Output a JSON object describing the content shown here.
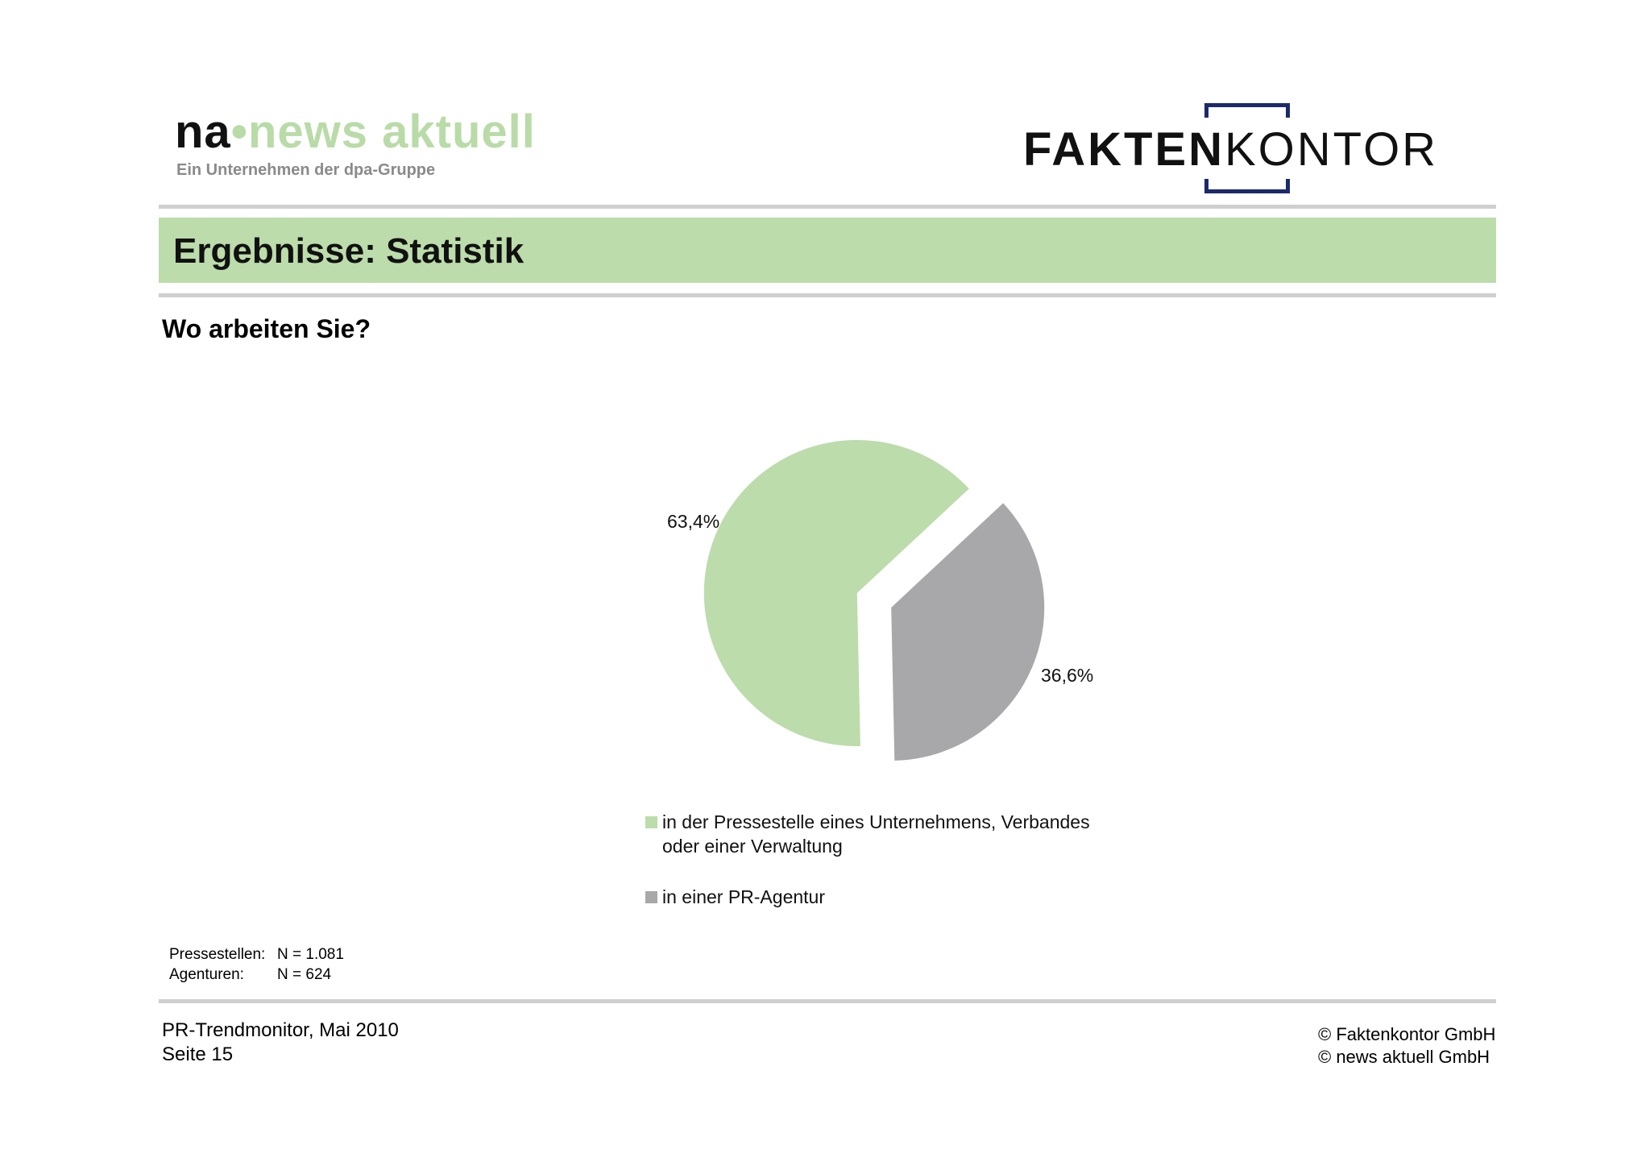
{
  "logos": {
    "news_aktuell": {
      "brand_na": "na",
      "brand_dot": "•",
      "brand_name": "news aktuell",
      "subtitle": "Ein Unternehmen der dpa-Gruppe"
    },
    "faktenkontor": {
      "part_bold": "FAKTEN",
      "part_light": "KONTOR"
    }
  },
  "header": {
    "title": "Ergebnisse: Statistik"
  },
  "question": "Wo arbeiten Sie?",
  "chart_data": {
    "type": "pie",
    "slices": [
      {
        "label": "in der Pressestelle eines Unternehmens, Verbandes oder einer Verwaltung",
        "value": 63.4,
        "display": "63,4%",
        "color": "#bcdcab"
      },
      {
        "label": "in einer PR-Agentur",
        "value": 36.6,
        "display": "36,6%",
        "color": "#a8a7a9"
      }
    ],
    "legend_lines": [
      [
        "in der Pressestelle eines Unternehmens, Verbandes",
        "oder einer Verwaltung"
      ],
      [
        "in einer PR-Agentur"
      ]
    ],
    "legend_placement": "bottom",
    "exploded": true
  },
  "sample": [
    {
      "label": "Pressestellen:",
      "value": "N = 1.081"
    },
    {
      "label": "Agenturen:",
      "value": "N = 624"
    }
  ],
  "footer": {
    "left_line1": "PR-Trendmonitor, Mai 2010",
    "left_line2": "Seite 15",
    "right_line1": "© Faktenkontor GmbH",
    "right_line2": "© news aktuell GmbH"
  },
  "colors": {
    "accent_green": "#bcdcab",
    "slice_gray": "#a8a7a9",
    "rule_gray": "#cfcfcf",
    "brand_blue": "#1c2a6b"
  }
}
